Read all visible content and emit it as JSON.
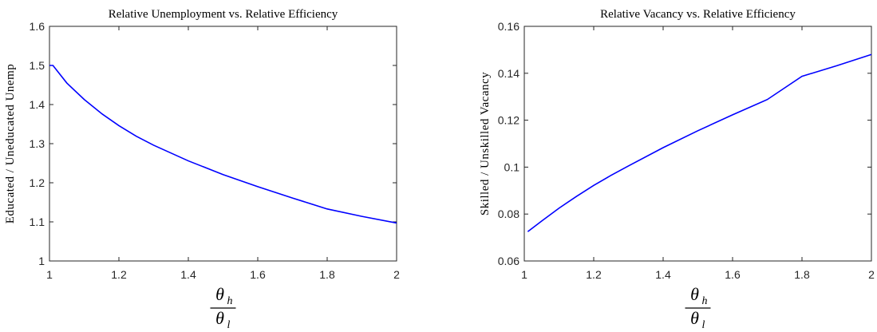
{
  "chart_data": [
    {
      "type": "line",
      "title": "Relative Unemployment vs. Relative Efficiency",
      "ylabel": "Educated / Uneducated Unemp",
      "xlabel_symbol": "θ",
      "xlabel_num_sub": "h",
      "xlabel_den_sub": "l",
      "xlim": [
        1,
        2
      ],
      "ylim": [
        1,
        1.6
      ],
      "xticks": [
        1,
        1.2,
        1.4,
        1.6,
        1.8,
        2
      ],
      "xtick_labels": [
        "1",
        "1.2",
        "1.4",
        "1.6",
        "1.8",
        "2"
      ],
      "yticks": [
        1,
        1.1,
        1.2,
        1.3,
        1.4,
        1.5,
        1.6
      ],
      "ytick_labels": [
        "1",
        "1.1",
        "1.2",
        "1.3",
        "1.4",
        "1.5",
        "1.6"
      ],
      "grid": false,
      "series": [
        {
          "color": "#0000ff",
          "x": [
            1.0,
            1.01,
            1.05,
            1.1,
            1.15,
            1.2,
            1.25,
            1.3,
            1.4,
            1.5,
            1.6,
            1.7,
            1.8,
            1.9,
            2.0
          ],
          "y": [
            1.5,
            1.5,
            1.455,
            1.413,
            1.377,
            1.346,
            1.319,
            1.296,
            1.256,
            1.221,
            1.19,
            1.161,
            1.133,
            1.114,
            1.097
          ]
        }
      ]
    },
    {
      "type": "line",
      "title": "Relative Vacancy vs. Relative Efficiency",
      "ylabel": "Skilled / Unskilled Vacancy",
      "xlabel_symbol": "θ",
      "xlabel_num_sub": "h",
      "xlabel_den_sub": "l",
      "xlim": [
        1,
        2
      ],
      "ylim": [
        0.06,
        0.16
      ],
      "xticks": [
        1,
        1.2,
        1.4,
        1.6,
        1.8,
        2
      ],
      "xtick_labels": [
        "1",
        "1.2",
        "1.4",
        "1.6",
        "1.8",
        "2"
      ],
      "yticks": [
        0.06,
        0.08,
        0.1,
        0.12,
        0.14,
        0.16
      ],
      "ytick_labels": [
        "0.06",
        "0.08",
        "0.1",
        "0.12",
        "0.14",
        "0.16"
      ],
      "grid": false,
      "series": [
        {
          "color": "#0000ff",
          "x": [
            1.01,
            1.05,
            1.1,
            1.15,
            1.2,
            1.25,
            1.3,
            1.4,
            1.5,
            1.6,
            1.7,
            1.8,
            1.9,
            2.0
          ],
          "y": [
            0.0725,
            0.077,
            0.0825,
            0.0875,
            0.0922,
            0.0965,
            0.1005,
            0.1083,
            0.1155,
            0.1223,
            0.1288,
            0.1387,
            0.1432,
            0.148
          ]
        }
      ]
    }
  ]
}
